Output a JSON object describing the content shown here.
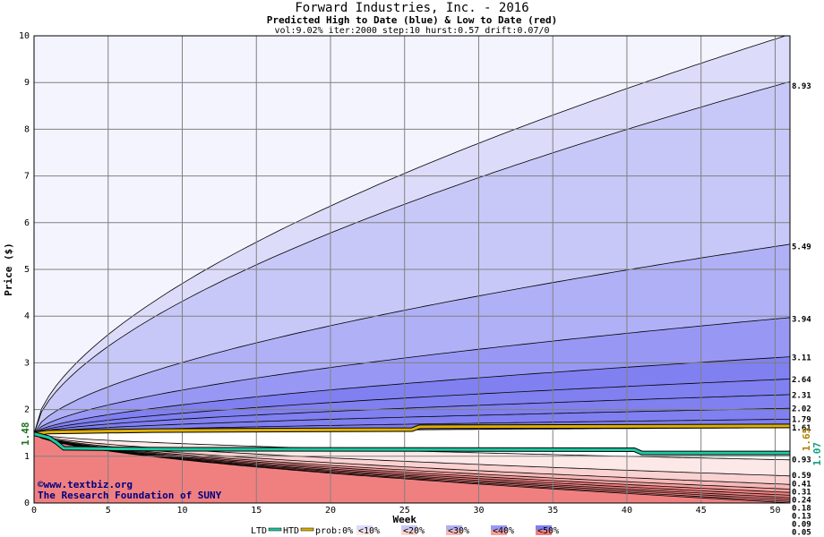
{
  "title": "Forward Industries, Inc. - 2016",
  "subtitle": "Predicted High to Date (blue) &  Low to Date (red)",
  "params": "vol:9.02% iter:2000 step:10 hurst:0.57 drift:0.07/0",
  "watermark_url": "©www.textbiz.org",
  "watermark_org": "The Research Foundation of SUNY",
  "legend": {
    "ltd": "LTD",
    "htd": "HTD",
    "prob": "prob:0%",
    "items": [
      "<10%",
      "<20%",
      "<30%",
      "<40%",
      "<50%"
    ]
  },
  "colors": {
    "ltd": "#20c8a0",
    "htd": "#e0b000",
    "grid": "#808080",
    "blue_bands": [
      "#f4f4ff",
      "#dcdcfa",
      "#c8c8f8",
      "#b0b0f6",
      "#9898f4",
      "#8080f0"
    ],
    "red_bands": [
      "#ffffff",
      "#fde8e8",
      "#fbd2d2",
      "#f8b8b8",
      "#f4a0a0",
      "#f08080"
    ]
  },
  "chart_data": {
    "type": "area",
    "xlabel": "Week",
    "ylabel": "Price ($)",
    "xlim": [
      0,
      51
    ],
    "ylim": [
      0,
      10
    ],
    "xticks": [
      0,
      5,
      10,
      15,
      20,
      25,
      30,
      35,
      40,
      45,
      50
    ],
    "yticks": [
      0,
      1,
      2,
      3,
      4,
      5,
      6,
      7,
      8,
      9,
      10
    ],
    "start_price": 1.48,
    "start_label": "1.48",
    "right_labels": [
      "1.65",
      "1.07"
    ],
    "high_curves": [
      {
        "end": 9.93,
        "label": ""
      },
      {
        "end": 8.93,
        "label": "8.93"
      },
      {
        "end": 5.49,
        "label": "5.49"
      },
      {
        "end": 3.94,
        "label": "3.94"
      },
      {
        "end": 3.11,
        "label": "3.11"
      },
      {
        "end": 2.64,
        "label": "2.64"
      },
      {
        "end": 2.31,
        "label": "2.31"
      },
      {
        "end": 2.02,
        "label": "2.02"
      },
      {
        "end": 1.79,
        "label": "1.79"
      },
      {
        "end": 1.61,
        "label": "1.61"
      }
    ],
    "low_curves": [
      {
        "end": 0.93,
        "label": "0.93"
      },
      {
        "end": 0.59,
        "label": "0.59"
      },
      {
        "end": 0.41,
        "label": "0.41"
      },
      {
        "end": 0.31,
        "label": "0.31"
      },
      {
        "end": 0.24,
        "label": "0.24"
      },
      {
        "end": 0.18,
        "label": "0.18"
      },
      {
        "end": 0.13,
        "label": "0.13"
      },
      {
        "end": 0.09,
        "label": "0.09"
      },
      {
        "end": 0.05,
        "label": "0.05"
      },
      {
        "end": 0.02,
        "label": "0.02"
      }
    ],
    "htd_series": {
      "x": [
        0,
        1,
        8,
        25.5,
        26,
        51
      ],
      "y": [
        1.48,
        1.52,
        1.55,
        1.57,
        1.63,
        1.65
      ]
    },
    "ltd_series": {
      "x": [
        0,
        1,
        1.5,
        2,
        5,
        10,
        40.5,
        41,
        51
      ],
      "y": [
        1.48,
        1.4,
        1.3,
        1.17,
        1.16,
        1.15,
        1.14,
        1.07,
        1.07
      ]
    }
  }
}
